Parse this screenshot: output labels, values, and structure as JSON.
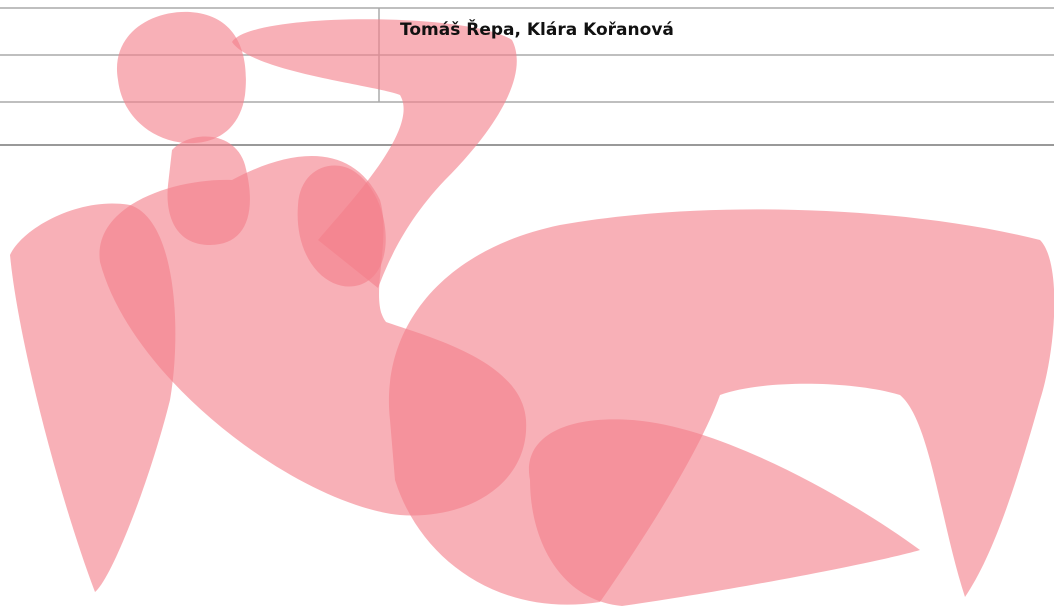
{
  "credits": "Tomáš Řepa, Klára Kořanová"
}
